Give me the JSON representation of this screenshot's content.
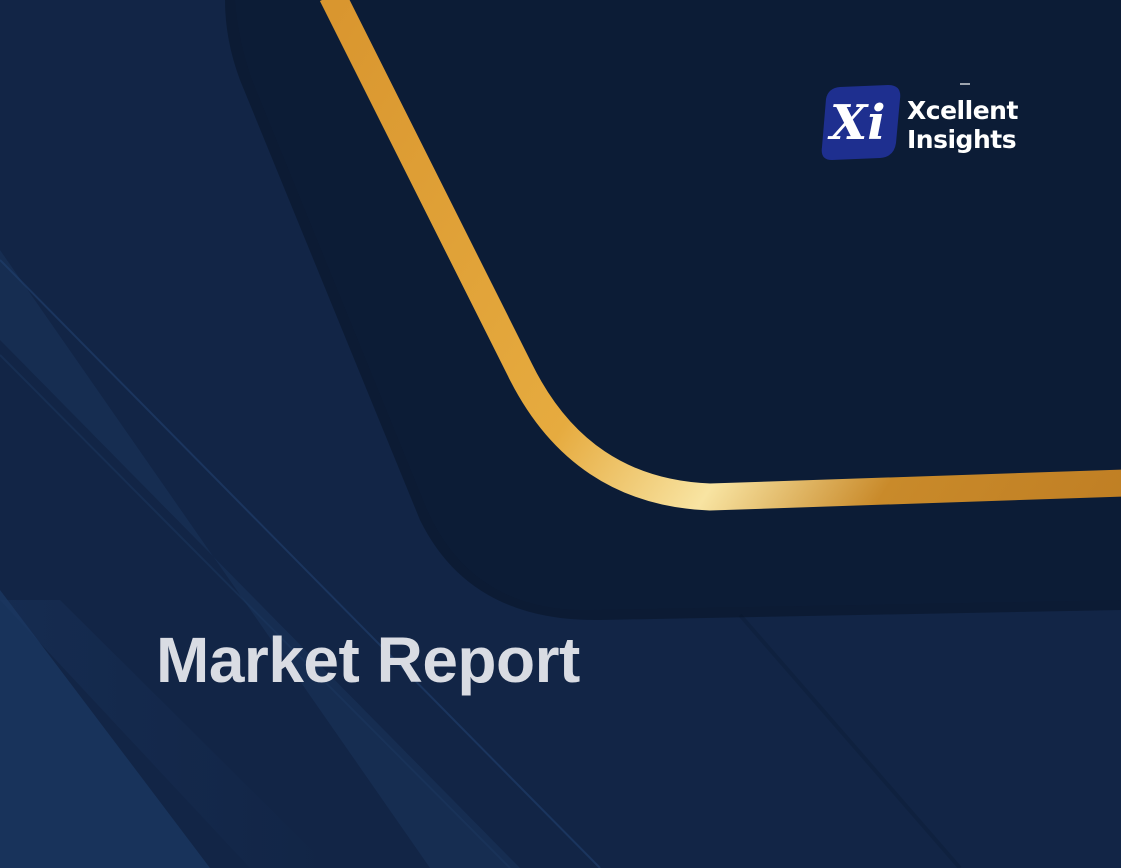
{
  "document": {
    "title": "Market Report"
  },
  "brand": {
    "mark": "Xi",
    "name_line1": "Xcellent",
    "name_line2": "Insights"
  },
  "colors": {
    "background": "#122546",
    "panel": "#0c1c36",
    "gold_accent": "#e0a43c",
    "title_text": "#d9dce3",
    "logo_badge": "#1e2f8f"
  }
}
